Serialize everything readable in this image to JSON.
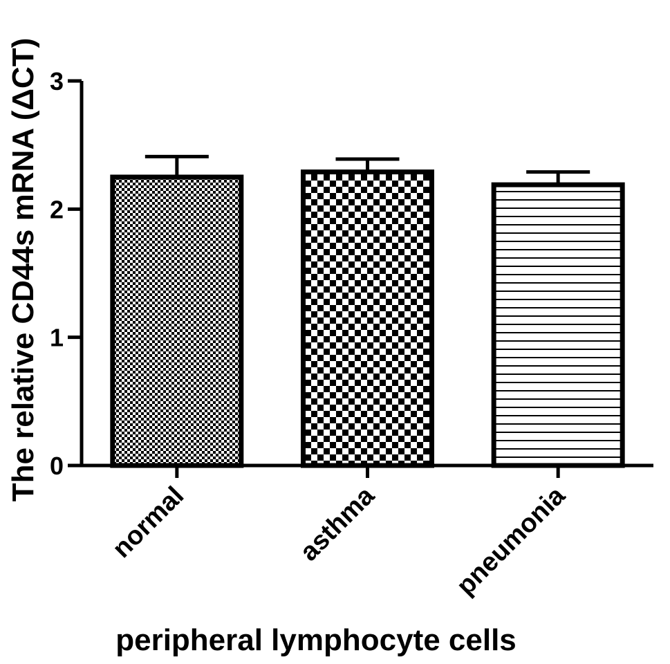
{
  "chart_data": {
    "type": "bar",
    "title": "",
    "xlabel": "peripheral lymphocyte cells",
    "ylabel": "The relative CD44s mRNA (ΔCT)",
    "categories": [
      "normal",
      "asthma",
      "pneumonia"
    ],
    "values": [
      2.25,
      2.29,
      2.19
    ],
    "error_upper": [
      2.41,
      2.39,
      2.29
    ],
    "patterns": [
      "fine-checker",
      "coarse-checker",
      "horizontal-stripes"
    ],
    "ylim": [
      0,
      3
    ],
    "yticks": [
      0,
      1,
      2,
      3
    ],
    "ytick_labels": [
      "0",
      "1",
      "2",
      "3"
    ],
    "grid": false,
    "legend": "none",
    "colors": {
      "ink": "#000000",
      "background": "#ffffff"
    }
  }
}
